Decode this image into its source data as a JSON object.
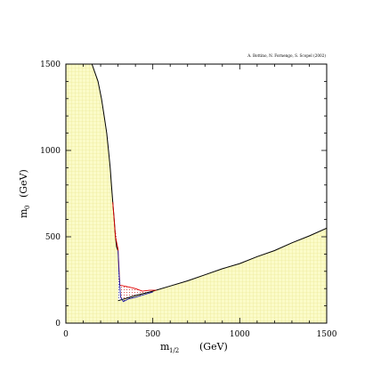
{
  "chart_data": {
    "type": "area",
    "title": "",
    "credit": "A. Bottino, N. Fornengo, S. Scopel (2002)",
    "xlabel_main": "m",
    "xlabel_sub": "1/2",
    "xlabel_unit": "(GeV)",
    "ylabel_main": "m",
    "ylabel_sub": "0",
    "ylabel_unit": "(GeV)",
    "xlim": [
      0,
      1500
    ],
    "ylim": [
      0,
      1500
    ],
    "x_ticks": [
      "0",
      "500",
      "1000",
      "1500"
    ],
    "y_ticks": [
      "0",
      "500",
      "1000",
      "1500"
    ],
    "grid": false,
    "colors": {
      "excluded_fill": "#fbfbc8",
      "excluded_grid": "#e8e48a",
      "boundary_black": "#000000",
      "boundary_red": "#e00000",
      "boundary_blue": "#1a1aa0",
      "allowed_dots_red": "#d03030",
      "allowed_dots_blue": "#3030b0"
    },
    "series": [
      {
        "region": "excluded-left",
        "boundary": [
          [
            150,
            1500
          ],
          [
            185,
            1400
          ],
          [
            205,
            1300
          ],
          [
            220,
            1200
          ],
          [
            235,
            1100
          ],
          [
            245,
            1000
          ],
          [
            255,
            900
          ],
          [
            262,
            800
          ],
          [
            270,
            700
          ],
          [
            278,
            600
          ],
          [
            285,
            500
          ],
          [
            292,
            440
          ],
          [
            300,
            420
          ]
        ]
      },
      {
        "region": "excluded-bottom",
        "boundary": [
          [
            300,
            130
          ],
          [
            400,
            160
          ],
          [
            500,
            185
          ],
          [
            600,
            215
          ],
          [
            700,
            245
          ],
          [
            800,
            280
          ],
          [
            900,
            315
          ],
          [
            1000,
            345
          ],
          [
            1100,
            385
          ],
          [
            1200,
            420
          ],
          [
            1300,
            465
          ],
          [
            1400,
            505
          ],
          [
            1500,
            550
          ]
        ]
      },
      {
        "region": "allowed-band-red",
        "boundary": [
          [
            270,
            700
          ],
          [
            285,
            500
          ],
          [
            300,
            430
          ],
          [
            310,
            220
          ],
          [
            360,
            210
          ],
          [
            400,
            200
          ],
          [
            440,
            185
          ],
          [
            480,
            190
          ],
          [
            520,
            190
          ]
        ]
      },
      {
        "region": "allowed-band-blue",
        "boundary": [
          [
            300,
            420
          ],
          [
            305,
            300
          ],
          [
            315,
            150
          ],
          [
            330,
            125
          ],
          [
            360,
            140
          ],
          [
            400,
            150
          ],
          [
            450,
            165
          ],
          [
            500,
            180
          ]
        ]
      }
    ]
  }
}
